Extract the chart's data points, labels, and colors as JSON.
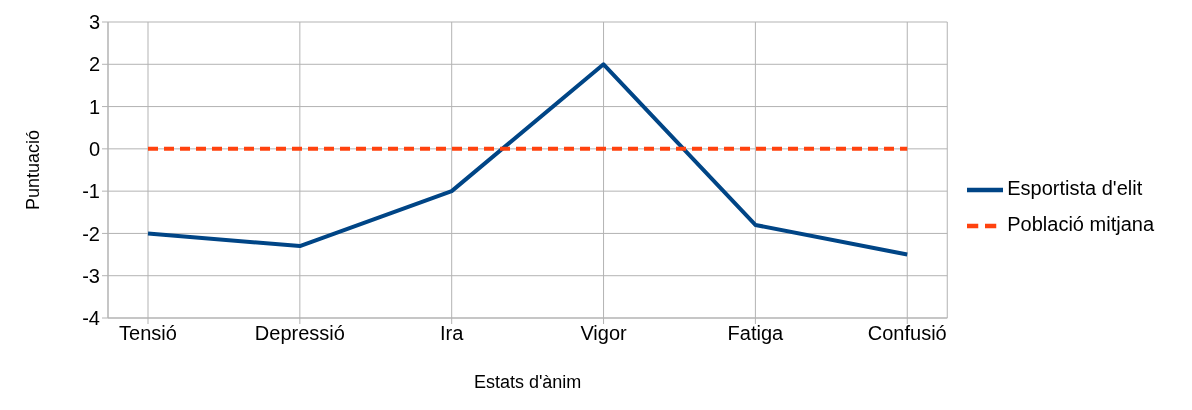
{
  "chart_data": {
    "type": "line",
    "xlabel": "Estats d'ànim",
    "ylabel": "Puntuació",
    "categories": [
      "Tensió",
      "Depressió",
      "Ira",
      "Vigor",
      "Fatiga",
      "Confusió"
    ],
    "series": [
      {
        "name": "Esportista d'elit",
        "color": "#004586",
        "values": [
          -2,
          -2.3,
          -1,
          2,
          -1.8,
          -2.5
        ],
        "line_style": "solid"
      },
      {
        "name": "Població mitjana",
        "color": "#ff420e",
        "values": [
          0,
          0,
          0,
          0,
          0,
          0
        ],
        "line_style": "dashed"
      }
    ],
    "ylim": [
      -4,
      3
    ],
    "yticks": [
      -4,
      -3,
      -2,
      -1,
      0,
      1,
      2,
      3
    ],
    "grid": true,
    "legend": "right",
    "marker": "none"
  }
}
